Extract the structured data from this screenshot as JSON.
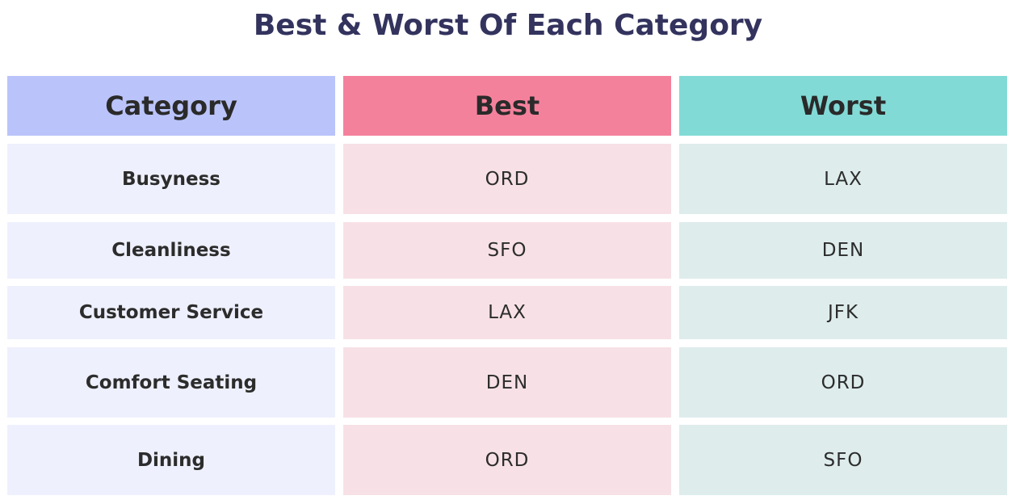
{
  "chart_data": {
    "type": "table",
    "title": "Best & Worst Of Each Category",
    "columns": [
      "Category",
      "Best",
      "Worst"
    ],
    "rows": [
      [
        "Busyness",
        "ORD",
        "LAX"
      ],
      [
        "Cleanliness",
        "SFO",
        "DEN"
      ],
      [
        "Customer Service",
        "LAX",
        "JFK"
      ],
      [
        "Comfort Seating",
        "DEN",
        "ORD"
      ],
      [
        "Dining",
        "ORD",
        "SFO"
      ]
    ]
  },
  "colors": {
    "title": "#33335e",
    "category_header": "#bac4fa",
    "best_header": "#f4819c",
    "worst_header": "#82dad6",
    "category_cell": "#eef0fd",
    "best_cell": "#f7e1e6",
    "worst_cell": "#deecec"
  }
}
